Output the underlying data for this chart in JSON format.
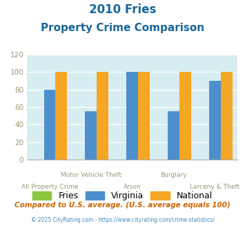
{
  "title_line1": "2010 Fries",
  "title_line2": "Property Crime Comparison",
  "categories": [
    "All Property Crime",
    "Motor Vehicle Theft",
    "Arson",
    "Burglary",
    "Larceny & Theft"
  ],
  "fries_values": [
    0,
    0,
    0,
    0,
    0
  ],
  "virginia_values": [
    80,
    55,
    100,
    55,
    90
  ],
  "national_values": [
    100,
    100,
    100,
    100,
    100
  ],
  "fries_color": "#8dc63f",
  "virginia_color": "#4d8fcc",
  "national_color": "#f5a623",
  "chart_bg_color": "#d8edf2",
  "fig_bg_color": "#ffffff",
  "ylim": [
    0,
    120
  ],
  "yticks": [
    0,
    20,
    40,
    60,
    80,
    100,
    120
  ],
  "footnote1": "Compared to U.S. average. (U.S. average equals 100)",
  "footnote2": "© 2025 CityRating.com - https://www.cityrating.com/crime-statistics/",
  "footnote2_color": "#4488bb",
  "footnote1_color": "#cc6600",
  "title_color": "#1a6699",
  "tick_label_color": "#999977",
  "label_upper_indices": [
    1,
    3
  ],
  "label_lower_indices": [
    0,
    2,
    4
  ],
  "label_upper_texts": [
    "Motor Vehicle Theft",
    "Burglary"
  ],
  "label_lower_texts": [
    "All Property Crime",
    "Arson",
    "Larceny & Theft"
  ],
  "bar_width": 0.28
}
